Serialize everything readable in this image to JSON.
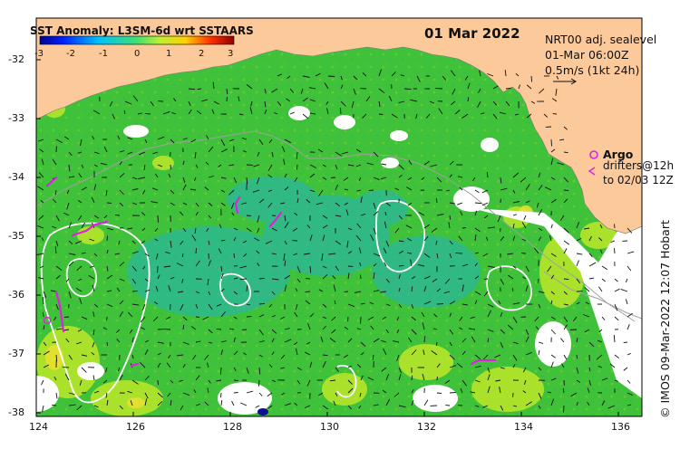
{
  "colorbar": {
    "title": "SST Anomaly: L3SM-6d wrt SSTAARS",
    "ticks": [
      "-3",
      "-2",
      "-1",
      "0",
      "1",
      "2",
      "3"
    ]
  },
  "date_label": "01 Mar 2022",
  "info": {
    "line1": "NRT00 adj. sealevel",
    "line2": "01-Mar 06:00Z",
    "line3": "0.5m/s (1kt 24h)"
  },
  "legend": {
    "argo_label": "Argo",
    "drifters_line1": "drifters@12h",
    "drifters_line2": "to 02/03 12Z",
    "argo_color": "#e020e0"
  },
  "credit": "© IMOS 09-Mar-2022 12:07 Hobart",
  "x_ticks": [
    "124",
    "126",
    "128",
    "130",
    "132",
    "134",
    "136"
  ],
  "y_ticks": [
    "-32",
    "-33",
    "-34",
    "-35",
    "-36",
    "-37",
    "-38"
  ],
  "colors": {
    "land": "#fbc99a",
    "ocean_anomaly_main": "#3fc23a",
    "ocean_anomaly_high": "#b6e62a",
    "ocean_anomaly_low": "#2bb79a",
    "contour": "#ffffff",
    "depth_line": "#a0a0a0"
  }
}
